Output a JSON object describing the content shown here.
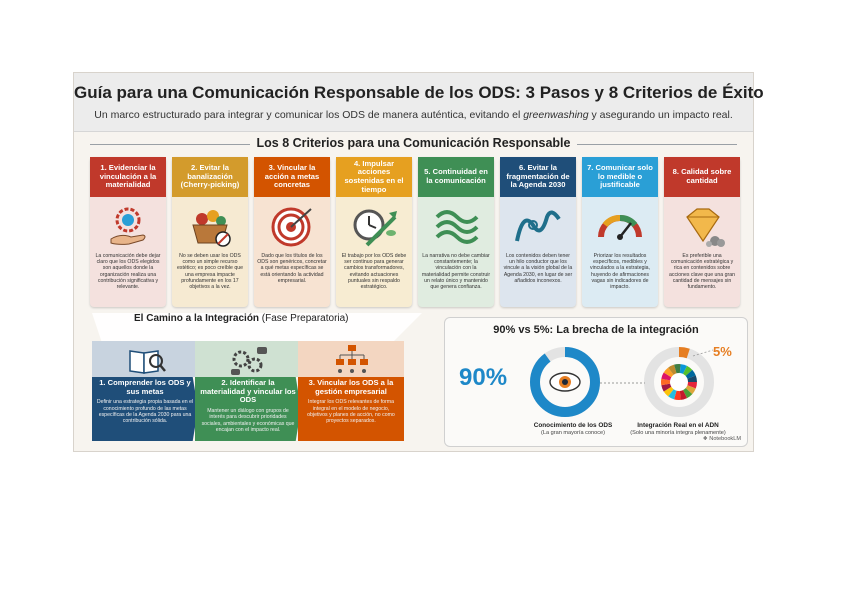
{
  "header": {
    "title": "Guía para una Comunicación Responsable de los ODS: 3 Pasos y 8 Criterios de Éxito",
    "subtitle_pre": "Un marco estructurado para integrar y comunicar los ODS de manera auténtica, evitando el ",
    "subtitle_em": "greenwashing",
    "subtitle_post": " y asegurando un impacto real."
  },
  "criteria": {
    "heading": "Los 8 Criterios para una Comunicación Responsable",
    "cards": [
      {
        "title": "1. Evidenciar la vinculación a la materialidad",
        "color": "#c0392b",
        "bg": "#f4e1de",
        "icon": "hand-gear-icon",
        "text": "La comunicación debe dejar claro que los ODS elegidos son aquellos donde la organización realiza una contribución significativa y relevante."
      },
      {
        "title": "2. Evitar la banalización (Cherry-picking)",
        "color": "#d39b2c",
        "bg": "#f6ead2",
        "icon": "fruit-basket-icon",
        "text": "No se deben usar los ODS como un simple recurso estético; es poco creíble que una empresa impacte profundamente en los 17 objetivos a la vez."
      },
      {
        "title": "3. Vincular la acción a metas concretas",
        "color": "#d35400",
        "bg": "#f7e3d2",
        "icon": "target-icon",
        "text": "Dado que los títulos de los ODS son genéricos, concretar a qué metas específicas se está orientando la actividad empresarial."
      },
      {
        "title": "4. Impulsar acciones sostenidas en el tiempo",
        "color": "#e6a020",
        "bg": "#f7ecd2",
        "icon": "clock-growth-icon",
        "text": "El trabajo por los ODS debe ser continuo para generar cambios transformadores, evitando actuaciones puntuales sin respaldo estratégico."
      },
      {
        "title": "5. Continuidad en la comunicación",
        "color": "#3f8f55",
        "bg": "#e0ece0",
        "icon": "rope-icon",
        "text": "La narrativa no debe cambiar constantemente; la vinculación con la materialidad permite construir un relato único y mantenido que genera confianza."
      },
      {
        "title": "6. Evitar la fragmentación de la Agenda 2030",
        "color": "#1f4e79",
        "bg": "#dde5ee",
        "icon": "thread-icon",
        "text": "Los contenidos deben tener un hilo conductor que los vincule a la visión global de la Agenda 2030, en lugar de ser añadidos inconexos."
      },
      {
        "title": "7. Comunicar solo lo medible o justificable",
        "color": "#2a9fd6",
        "bg": "#dcebf3",
        "icon": "gauge-icon",
        "text": "Priorizar los resultados específicos, medibles y vinculados a la estrategia, huyendo de afirmaciones vagas sin indicadores de impacto."
      },
      {
        "title": "8. Calidad sobre cantidad",
        "color": "#c0392b",
        "bg": "#f4e1de",
        "icon": "diamond-icon",
        "text": "Es preferible una comunicación estratégica y rica en contenidos sobre acciones clave que una gran cantidad de mensajes sin fundamento."
      }
    ]
  },
  "path": {
    "title": "El Camino a la Integración",
    "subtitle": " (Fase Preparatoria)",
    "steps": [
      {
        "title": "1. Comprender los ODS y sus metas",
        "color": "#1f4e79",
        "top": "#c8d3df",
        "icon": "book-search-icon",
        "text": "Definir una estrategia propia basada en el conocimiento profundo de las metas específicas de la Agenda 2030 para una contribución sólida."
      },
      {
        "title": "2. Identificar la materialidad y vincular los ODS",
        "color": "#3f8f55",
        "top": "#cfe1d2",
        "icon": "gears-dialogue-icon",
        "text": "Mantener un diálogo con grupos de interés para descubrir prioridades sociales, ambientales y económicas que encajan con el impacto real."
      },
      {
        "title": "3. Vincular los ODS a la gestión empresarial",
        "color": "#d35400",
        "top": "#f3d6c1",
        "icon": "org-chart-icon",
        "text": "Integrar los ODS relevantes de forma integral en el modelo de negocio, objetivos y planes de acción, no como proyectos separados."
      }
    ]
  },
  "gap": {
    "title": "90% vs 5%: La brecha de la integración",
    "left_value": "90%",
    "right_value": "5%",
    "left_fraction": 0.9,
    "right_fraction": 0.05,
    "left_caption": "Conocimiento de los ODS",
    "left_sub": "(La gran mayoría conoce)",
    "right_caption": "Integración Real en el ADN",
    "right_sub": "(Solo una minoría integra plenamente)",
    "left_color": "#1e88c8",
    "right_color": "#e67e22"
  },
  "credit": "NotebookLM"
}
